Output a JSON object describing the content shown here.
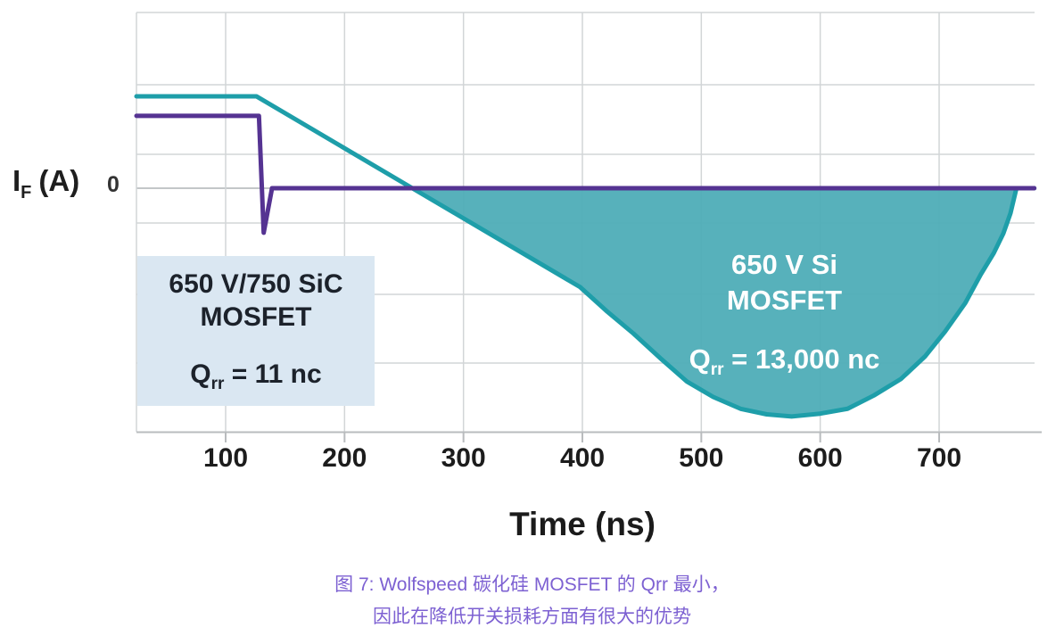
{
  "figure": {
    "y_axis": {
      "symbol": "I",
      "subscript": "F",
      "unit": "(A)",
      "zero_label": "0"
    },
    "x_axis": {
      "label": "Time (ns)"
    },
    "sic_box": {
      "line1": "650 V/750 SiC",
      "line2": "MOSFET",
      "q_symbol": "Q",
      "q_subscript": "rr",
      "q_value": " = 11 nc"
    },
    "si_label": {
      "line1": "650 V Si",
      "line2": "MOSFET",
      "q_symbol": "Q",
      "q_subscript": "rr",
      "q_value": " = 13,000 nc"
    },
    "caption_line1": "图 7: Wolfspeed 碳化硅 MOSFET 的 Qrr 最小，",
    "caption_line2": "因此在降低开关损耗方面有很大的优势",
    "colors": {
      "si_line": "#1E9EA9",
      "si_fill": "#4EADB7",
      "sic_line": "#553392",
      "grid": "#D2D5D7",
      "axis": "#B9BCBE",
      "box_bg": "#DAE7F2",
      "caption": "#7D61D2",
      "label_on_fill": "#FFFFFF"
    }
  },
  "chart_data": {
    "type": "line",
    "title": "",
    "xlabel": "Time (ns)",
    "ylabel": "IF (A)",
    "x_axis_ticks": [
      100,
      200,
      300,
      400,
      500,
      600,
      700
    ],
    "x_range_ns": [
      25,
      780
    ],
    "y_axis_labeled_values": [
      0
    ],
    "y_units": "relative amplitude (only 0 is labeled on axis)",
    "grid": true,
    "legend": "inline annotations instead of legend box",
    "series": [
      {
        "name": "650 V/750 SiC MOSFET",
        "qrr_label": "Qrr = 11 nc",
        "color": "#553392",
        "points_t_i": [
          [
            25,
            1.04
          ],
          [
            128,
            1.04
          ],
          [
            132,
            -0.64
          ],
          [
            139,
            0
          ],
          [
            780,
            0
          ]
        ]
      },
      {
        "name": "650 V Si MOSFET",
        "qrr_label": "Qrr = 13,000 nc",
        "color": "#1E9EA9",
        "fill": "#4EADB7",
        "fill_between_zero_t": [
          257,
          765
        ],
        "points_t_i": [
          [
            25,
            1.32
          ],
          [
            126,
            1.32
          ],
          [
            257,
            0
          ],
          [
            398,
            -1.42
          ],
          [
            420,
            -1.76
          ],
          [
            443,
            -2.09
          ],
          [
            466,
            -2.45
          ],
          [
            488,
            -2.78
          ],
          [
            510,
            -3.0
          ],
          [
            533,
            -3.17
          ],
          [
            555,
            -3.25
          ],
          [
            576,
            -3.28
          ],
          [
            600,
            -3.24
          ],
          [
            623,
            -3.17
          ],
          [
            645,
            -2.98
          ],
          [
            668,
            -2.74
          ],
          [
            688,
            -2.42
          ],
          [
            705,
            -2.06
          ],
          [
            722,
            -1.65
          ],
          [
            735,
            -1.24
          ],
          [
            746,
            -0.93
          ],
          [
            754,
            -0.65
          ],
          [
            760,
            -0.36
          ],
          [
            765,
            0
          ],
          [
            780,
            0
          ]
        ]
      }
    ],
    "annotations": [
      "650 V/750 SiC MOSFET  Qrr = 11 nc",
      "650 V Si MOSFET  Qrr = 13,000 nc"
    ]
  }
}
